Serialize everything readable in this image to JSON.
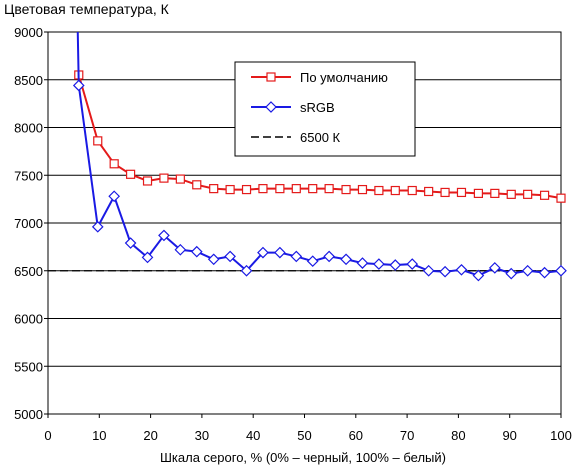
{
  "chart_data": {
    "type": "line",
    "title": "Цветовая температура, К",
    "xlabel": "Шкала серого, % (0% – черный, 100% – белый)",
    "ylabel": "",
    "xlim": [
      0,
      100
    ],
    "ylim": [
      5000,
      9000
    ],
    "xticks": [
      "0",
      "10",
      "20",
      "30",
      "40",
      "50",
      "60",
      "70",
      "80",
      "90",
      "100"
    ],
    "yticks": [
      "5000",
      "5500",
      "6000",
      "6500",
      "7000",
      "7500",
      "8000",
      "8500",
      "9000"
    ],
    "grid": "horizontal",
    "legend": "top-center",
    "series": [
      {
        "name": "По умолчанию",
        "color": "#e41a1a",
        "marker": "square",
        "x": [
          6,
          9.7,
          12.9,
          16.1,
          19.4,
          22.6,
          25.8,
          29,
          32.3,
          35.5,
          38.7,
          41.9,
          45.2,
          48.4,
          51.6,
          54.8,
          58.1,
          61.3,
          64.5,
          67.7,
          71,
          74.2,
          77.4,
          80.6,
          83.9,
          87.1,
          90.3,
          93.5,
          96.8,
          100
        ],
        "y": [
          8550,
          7860,
          7620,
          7510,
          7440,
          7470,
          7460,
          7400,
          7360,
          7350,
          7350,
          7360,
          7360,
          7360,
          7360,
          7360,
          7350,
          7350,
          7340,
          7340,
          7340,
          7330,
          7320,
          7320,
          7310,
          7310,
          7300,
          7300,
          7290,
          7260
        ]
      },
      {
        "name": "sRGB",
        "color": "#1a1ae4",
        "marker": "diamond",
        "line_start": [
          5.8,
          9000
        ],
        "x": [
          6,
          9.7,
          12.9,
          16.1,
          19.4,
          22.6,
          25.8,
          29,
          32.3,
          35.5,
          38.7,
          41.9,
          45.2,
          48.4,
          51.6,
          54.8,
          58.1,
          61.3,
          64.5,
          67.7,
          71,
          74.2,
          77.4,
          80.6,
          83.9,
          87.1,
          90.3,
          93.5,
          96.8,
          100
        ],
        "y": [
          8440,
          6960,
          7280,
          6790,
          6640,
          6870,
          6720,
          6700,
          6620,
          6650,
          6500,
          6690,
          6690,
          6650,
          6600,
          6650,
          6620,
          6580,
          6570,
          6560,
          6570,
          6500,
          6490,
          6510,
          6450,
          6530,
          6470,
          6500,
          6480,
          6500
        ]
      },
      {
        "name": "6500 К",
        "color": "#000000",
        "dashed": true,
        "x": [
          0,
          100
        ],
        "y": [
          6500,
          6500
        ]
      }
    ]
  }
}
